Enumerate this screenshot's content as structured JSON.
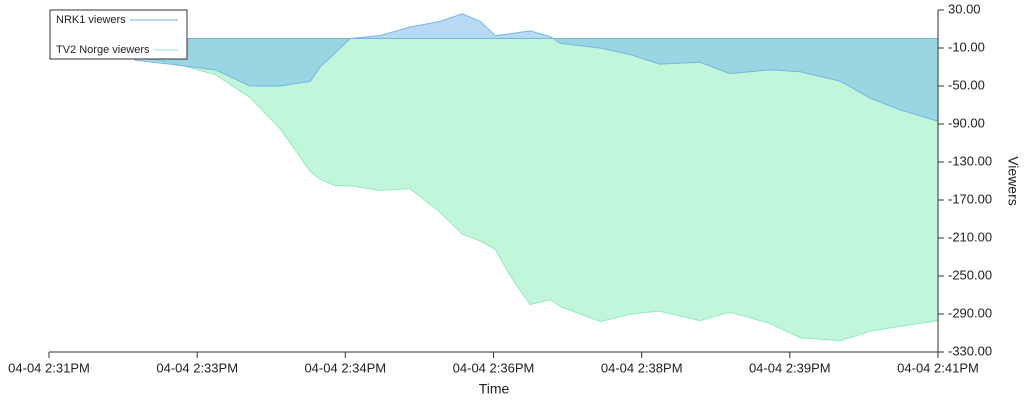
{
  "chart_data": {
    "type": "area",
    "x_label": "Time",
    "y_label": "Viewers",
    "legend": "top-left",
    "baseline": 0,
    "x": [
      871.97,
      872.36,
      872.87,
      873.26,
      873.6,
      873.94,
      874.05,
      874.22,
      874.39,
      874.72,
      875.06,
      875.4,
      875.65,
      875.85,
      876.02,
      876.19,
      876.41,
      876.64,
      876.75,
      877.2,
      877.54,
      877.87,
      878.32,
      878.66,
      879.11,
      879.45,
      879.9,
      880.24,
      880.57,
      881.0
    ],
    "series": [
      {
        "name": "TV2 Norge viewers",
        "color": "#8eeebe",
        "values": [
          -20,
          -25,
          -38,
          -62,
          -95,
          -140,
          -148,
          -155,
          -155,
          -160,
          -158,
          -183,
          -206,
          -213,
          -222,
          -250,
          -280,
          -275,
          -282,
          -298,
          -290,
          -287,
          -297,
          -288,
          -300,
          -315,
          -318,
          -308,
          -303,
          -297
        ]
      },
      {
        "name": "NRK1 viewers",
        "color": "#74b6ea",
        "values": [
          -23,
          -27,
          -33,
          -50,
          -50,
          -45,
          -30,
          -15,
          0,
          3,
          12,
          18,
          26,
          18,
          3,
          5,
          8,
          2,
          -5,
          -10,
          -17,
          -27,
          -25,
          -37,
          -33,
          -35,
          -45,
          -63,
          -75,
          -87
        ]
      }
    ],
    "xlim": [
      871,
      881
    ],
    "xticks": [
      {
        "value": 871,
        "label": "04-04 2:31PM"
      },
      {
        "value": 872.667,
        "label": "04-04 2:33PM"
      },
      {
        "value": 874.333,
        "label": "04-04 2:34PM"
      },
      {
        "value": 876,
        "label": "04-04 2:36PM"
      },
      {
        "value": 877.667,
        "label": "04-04 2:38PM"
      },
      {
        "value": 879.333,
        "label": "04-04 2:39PM"
      },
      {
        "value": 881,
        "label": "04-04 2:41PM"
      }
    ],
    "ylim": [
      -330,
      30
    ],
    "yticks": [
      {
        "value": 30,
        "label": "30.00"
      },
      {
        "value": -10,
        "label": "-10.00"
      },
      {
        "value": -50,
        "label": "-50.00"
      },
      {
        "value": -90,
        "label": "-90.00"
      },
      {
        "value": -130,
        "label": "-130.00"
      },
      {
        "value": -170,
        "label": "-170.00"
      },
      {
        "value": -210,
        "label": "-210.00"
      },
      {
        "value": -250,
        "label": "-250.00"
      },
      {
        "value": -290,
        "label": "-290.00"
      },
      {
        "value": -330,
        "label": "-330.00"
      }
    ]
  }
}
